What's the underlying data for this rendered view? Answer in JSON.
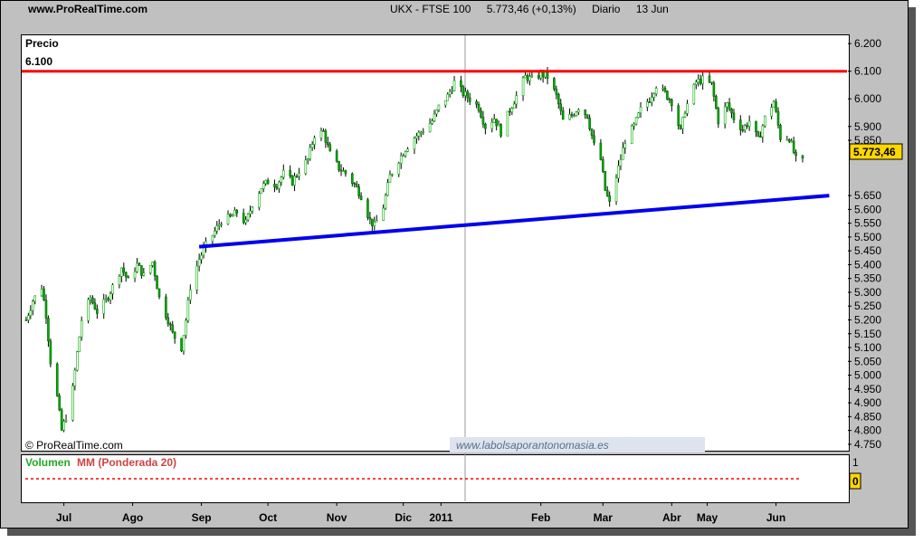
{
  "header": {
    "site": "www.ProRealTime.com",
    "instrument": "UKX - FTSE 100",
    "quote": "5.773,46 (+0,13%)",
    "period": "Diario",
    "date": "13 Jun"
  },
  "chart_data": {
    "type": "candlestick",
    "price_label": "Precio",
    "resistance_label": "6.100",
    "last_value_label": "5.773,46",
    "copyright": "© ProRealTime.com",
    "watermark": "www.labolsaporantonomasia.es",
    "y_ticks": [
      "6.200",
      "6.100",
      "6.000",
      "5.900",
      "5.850",
      "5.650",
      "5.600",
      "5.550",
      "5.500",
      "5.450",
      "5.400",
      "5.350",
      "5.300",
      "5.250",
      "5.200",
      "5.150",
      "5.100",
      "5.050",
      "5.000",
      "4.950",
      "4.900",
      "4.850",
      "4.800",
      "4.750"
    ],
    "x_ticks": [
      "Jul",
      "Ago",
      "Sep",
      "Oct",
      "Nov",
      "Dic",
      "2011",
      "Feb",
      "Mar",
      "Abr",
      "May",
      "Jun"
    ],
    "ylim": [
      4730,
      6230
    ],
    "resistance": 6100,
    "support_line": {
      "from": [
        "2010-09-14",
        5465
      ],
      "to": [
        "2011-06-25",
        5650
      ]
    },
    "points": [
      [
        "2010-06-28",
        5200
      ],
      [
        "2010-07-01",
        5270
      ],
      [
        "2010-07-05",
        5320
      ],
      [
        "2010-07-07",
        5220
      ],
      [
        "2010-07-09",
        5050
      ],
      [
        "2010-07-12",
        4920
      ],
      [
        "2010-07-14",
        4800
      ],
      [
        "2010-07-16",
        4850
      ],
      [
        "2010-07-19",
        4950
      ],
      [
        "2010-07-21",
        5080
      ],
      [
        "2010-07-23",
        5200
      ],
      [
        "2010-07-27",
        5280
      ],
      [
        "2010-07-30",
        5230
      ],
      [
        "2010-08-03",
        5270
      ],
      [
        "2010-08-06",
        5320
      ],
      [
        "2010-08-10",
        5390
      ],
      [
        "2010-08-13",
        5340
      ],
      [
        "2010-08-17",
        5400
      ],
      [
        "2010-08-20",
        5360
      ],
      [
        "2010-08-24",
        5410
      ],
      [
        "2010-08-27",
        5280
      ],
      [
        "2010-08-31",
        5200
      ],
      [
        "2010-09-02",
        5150
      ],
      [
        "2010-09-06",
        5100
      ],
      [
        "2010-09-08",
        5200
      ],
      [
        "2010-09-10",
        5320
      ],
      [
        "2010-09-14",
        5420
      ],
      [
        "2010-09-17",
        5470
      ],
      [
        "2010-09-21",
        5520
      ],
      [
        "2010-09-24",
        5560
      ],
      [
        "2010-09-28",
        5570
      ],
      [
        "2010-10-01",
        5590
      ],
      [
        "2010-10-05",
        5550
      ],
      [
        "2010-10-08",
        5620
      ],
      [
        "2010-10-12",
        5680
      ],
      [
        "2010-10-15",
        5700
      ],
      [
        "2010-10-19",
        5690
      ],
      [
        "2010-10-22",
        5730
      ],
      [
        "2010-10-26",
        5700
      ],
      [
        "2010-10-29",
        5740
      ],
      [
        "2010-11-02",
        5780
      ],
      [
        "2010-11-05",
        5870
      ],
      [
        "2010-11-09",
        5880
      ],
      [
        "2010-11-12",
        5800
      ],
      [
        "2010-11-16",
        5750
      ],
      [
        "2010-11-19",
        5730
      ],
      [
        "2010-11-23",
        5690
      ],
      [
        "2010-11-26",
        5650
      ],
      [
        "2010-11-30",
        5560
      ],
      [
        "2010-12-02",
        5540
      ],
      [
        "2010-12-06",
        5610
      ],
      [
        "2010-12-09",
        5720
      ],
      [
        "2010-12-13",
        5780
      ],
      [
        "2010-12-16",
        5820
      ],
      [
        "2010-12-20",
        5860
      ],
      [
        "2010-12-23",
        5880
      ],
      [
        "2010-12-28",
        5920
      ],
      [
        "2010-12-31",
        5970
      ],
      [
        "2011-01-04",
        6010
      ],
      [
        "2011-01-07",
        6060
      ],
      [
        "2011-01-11",
        6020
      ],
      [
        "2011-01-14",
        6000
      ],
      [
        "2011-01-18",
        5970
      ],
      [
        "2011-01-21",
        5900
      ],
      [
        "2011-01-25",
        5930
      ],
      [
        "2011-01-28",
        5880
      ],
      [
        "2011-02-01",
        5960
      ],
      [
        "2011-02-04",
        6010
      ],
      [
        "2011-02-08",
        6080
      ],
      [
        "2011-02-11",
        6070
      ],
      [
        "2011-02-15",
        6090
      ],
      [
        "2011-02-18",
        6080
      ],
      [
        "2011-02-22",
        6010
      ],
      [
        "2011-02-25",
        5920
      ],
      [
        "2011-03-01",
        5940
      ],
      [
        "2011-03-04",
        5970
      ],
      [
        "2011-03-08",
        5940
      ],
      [
        "2011-03-11",
        5830
      ],
      [
        "2011-03-14",
        5780
      ],
      [
        "2011-03-16",
        5670
      ],
      [
        "2011-03-18",
        5620
      ],
      [
        "2011-03-22",
        5750
      ],
      [
        "2011-03-25",
        5850
      ],
      [
        "2011-03-29",
        5900
      ],
      [
        "2011-04-01",
        5960
      ],
      [
        "2011-04-05",
        6000
      ],
      [
        "2011-04-08",
        6050
      ],
      [
        "2011-04-12",
        6020
      ],
      [
        "2011-04-15",
        5990
      ],
      [
        "2011-04-19",
        5880
      ],
      [
        "2011-04-21",
        5960
      ],
      [
        "2011-04-26",
        6060
      ],
      [
        "2011-04-29",
        6070
      ],
      [
        "2011-05-03",
        6050
      ],
      [
        "2011-05-06",
        5920
      ],
      [
        "2011-05-10",
        5980
      ],
      [
        "2011-05-13",
        5930
      ],
      [
        "2011-05-17",
        5890
      ],
      [
        "2011-05-20",
        5920
      ],
      [
        "2011-05-24",
        5850
      ],
      [
        "2011-05-27",
        5930
      ],
      [
        "2011-05-31",
        5990
      ],
      [
        "2011-06-03",
        5860
      ],
      [
        "2011-06-07",
        5860
      ],
      [
        "2011-06-10",
        5780
      ],
      [
        "2011-06-13",
        5773
      ]
    ]
  },
  "volume": {
    "label_volumen": "Volumen",
    "label_mm": "MM (Ponderada 20)",
    "ticks": [
      "1",
      "0"
    ]
  }
}
